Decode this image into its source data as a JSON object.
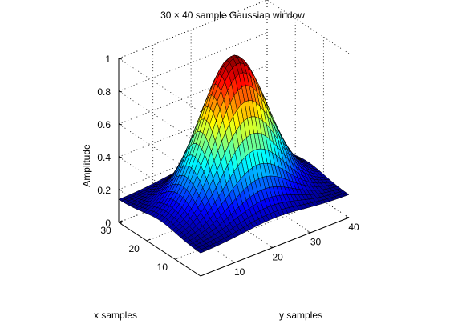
{
  "chart_data": {
    "type": "surface",
    "title": "30 × 40 sample Gaussian window",
    "xlabel": "y samples",
    "ylabel": "x samples",
    "zlabel": "Amplitude",
    "grid": true,
    "colormap": "jet",
    "xlim": [
      1,
      40
    ],
    "ylim": [
      1,
      30
    ],
    "zlim": [
      0,
      1
    ],
    "x_ticks": [
      10,
      20,
      30,
      40
    ],
    "y_ticks": [
      10,
      20,
      30
    ],
    "z_ticks": [
      0,
      0.2,
      0.4,
      0.6,
      0.8,
      1
    ],
    "x_tick_labels": [
      "10",
      "20",
      "30",
      "40"
    ],
    "y_tick_labels": [
      "10",
      "20",
      "30"
    ],
    "z_tick_labels": [
      "0",
      "0.2",
      "0.4",
      "0.6",
      "0.8",
      "1"
    ],
    "grid_cols": 40,
    "grid_rows": 30,
    "gaussian_alpha": 2.5,
    "peak_value": 1.0,
    "edge_value": 0.14
  }
}
